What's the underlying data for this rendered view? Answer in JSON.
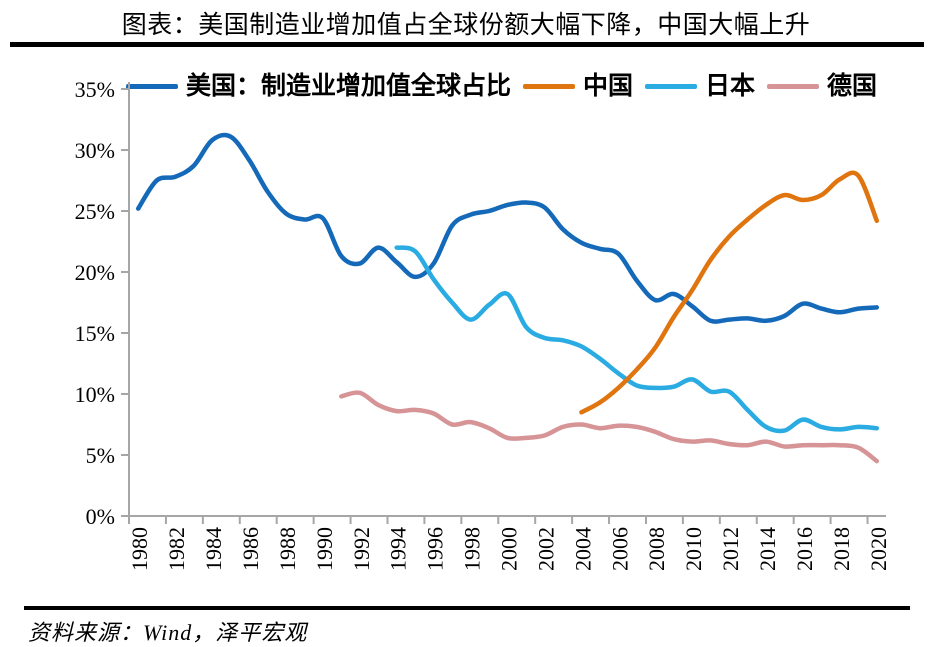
{
  "header": {
    "title": "图表：美国制造业增加值占全球份额大幅下降，中国大幅上升"
  },
  "footer": {
    "source": "资料来源：Wind，泽平宏观"
  },
  "legend": [
    {
      "label": "美国：制造业增加值全球占比",
      "color": "#1469b9"
    },
    {
      "label": "中国",
      "color": "#e0750f"
    },
    {
      "label": "日本",
      "color": "#2aabe2"
    },
    {
      "label": "德国",
      "color": "#d69496"
    }
  ],
  "chart_data": {
    "type": "line",
    "title": "图表：美国制造业增加值占全球份额大幅下降，中国大幅上升",
    "xlabel": "",
    "ylabel": "",
    "x_range": [
      1980,
      2020
    ],
    "ylim": [
      0,
      35
    ],
    "grid": false,
    "legend_position": "top",
    "axis_color": "#a6a6a6",
    "xtick_labels": [
      "1980",
      "1982",
      "1984",
      "1986",
      "1988",
      "1990",
      "1992",
      "1994",
      "1996",
      "1998",
      "2000",
      "2002",
      "2004",
      "2006",
      "2008",
      "2010",
      "2012",
      "2014",
      "2016",
      "2018",
      "2020"
    ],
    "ytick_labels": [
      "0%",
      "5%",
      "10%",
      "15%",
      "20%",
      "25%",
      "30%",
      "35%"
    ],
    "series": [
      {
        "name": "美国：制造业增加值全球占比",
        "color": "#1469b9",
        "start_year": 1980,
        "values": [
          25.2,
          27.5,
          27.8,
          28.7,
          30.8,
          31.1,
          29.2,
          26.6,
          24.8,
          24.3,
          24.4,
          21.3,
          20.7,
          22.0,
          20.8,
          19.6,
          20.7,
          23.8,
          24.7,
          25.0,
          25.5,
          25.7,
          25.3,
          23.5,
          22.4,
          21.9,
          21.5,
          19.3,
          17.7,
          18.2,
          17.2,
          16.0,
          16.1,
          16.2,
          16.0,
          16.4,
          17.4,
          17.0,
          16.7,
          17.0,
          17.1
        ]
      },
      {
        "name": "中国",
        "color": "#e0750f",
        "start_year": 2004,
        "values": [
          8.5,
          9.3,
          10.5,
          12.0,
          13.8,
          16.3,
          18.5,
          21.0,
          22.9,
          24.3,
          25.5,
          26.3,
          25.9,
          26.3,
          27.6,
          27.9,
          24.2
        ]
      },
      {
        "name": "日本",
        "color": "#2aabe2",
        "start_year": 1994,
        "values": [
          22.0,
          21.7,
          19.4,
          17.5,
          16.1,
          17.3,
          18.2,
          15.5,
          14.6,
          14.4,
          13.9,
          12.9,
          11.7,
          10.7,
          10.5,
          10.6,
          11.2,
          10.2,
          10.2,
          8.7,
          7.3,
          7.0,
          7.9,
          7.3,
          7.1,
          7.3,
          7.2
        ]
      },
      {
        "name": "德国",
        "color": "#d69496",
        "start_year": 1991,
        "values": [
          9.8,
          10.1,
          9.1,
          8.6,
          8.7,
          8.4,
          7.5,
          7.7,
          7.2,
          6.4,
          6.4,
          6.6,
          7.3,
          7.5,
          7.2,
          7.4,
          7.3,
          6.9,
          6.3,
          6.1,
          6.2,
          5.9,
          5.8,
          6.1,
          5.7,
          5.8,
          5.8,
          5.8,
          5.6,
          4.5
        ]
      }
    ]
  }
}
